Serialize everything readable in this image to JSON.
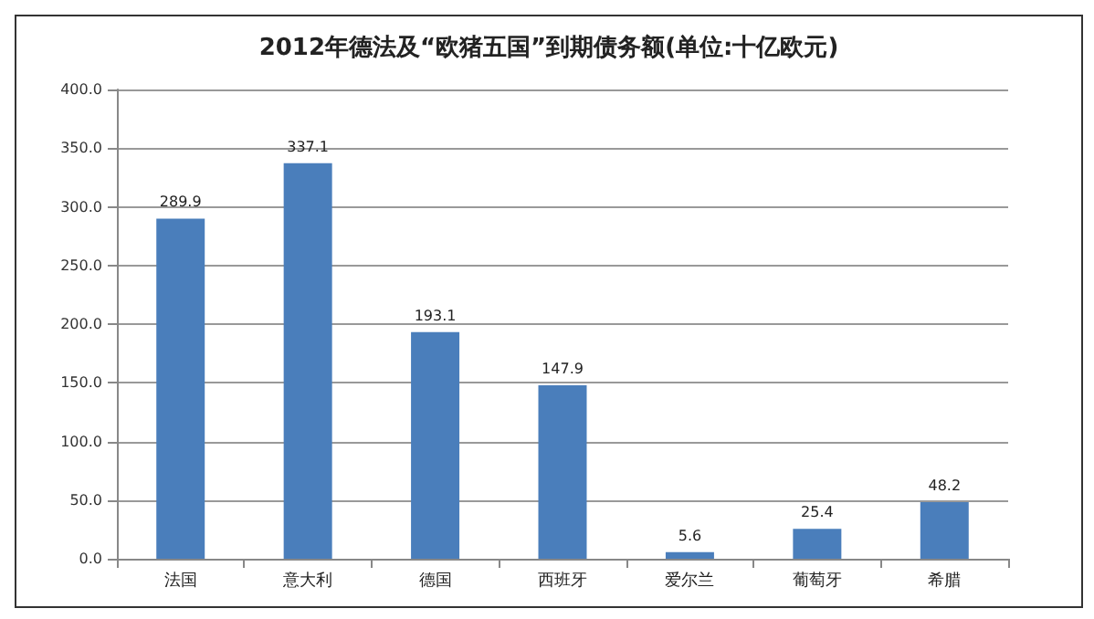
{
  "chart_data": {
    "type": "bar",
    "title": "2012年德法及“欧猪五国”到期债务额(单位:十亿欧元)",
    "categories": [
      "法国",
      "意大利",
      "德国",
      "西班牙",
      "爱尔兰",
      "葡萄牙",
      "希腊"
    ],
    "values": [
      289.9,
      337.1,
      193.1,
      147.9,
      5.6,
      25.4,
      48.2
    ],
    "color": "#4a7ebb",
    "ylim": [
      0,
      400
    ],
    "yticks": [
      {
        "value": 0,
        "label": "0.0"
      },
      {
        "value": 50,
        "label": "50.0"
      },
      {
        "value": 100,
        "label": "100.0"
      },
      {
        "value": 150,
        "label": "150.0"
      },
      {
        "value": 200,
        "label": "200.0"
      },
      {
        "value": 250,
        "label": "250.0"
      },
      {
        "value": 300,
        "label": "300.0"
      },
      {
        "value": 350,
        "label": "350.0"
      },
      {
        "value": 400,
        "label": "400.0"
      }
    ],
    "grid": "y",
    "data_labels": true
  }
}
